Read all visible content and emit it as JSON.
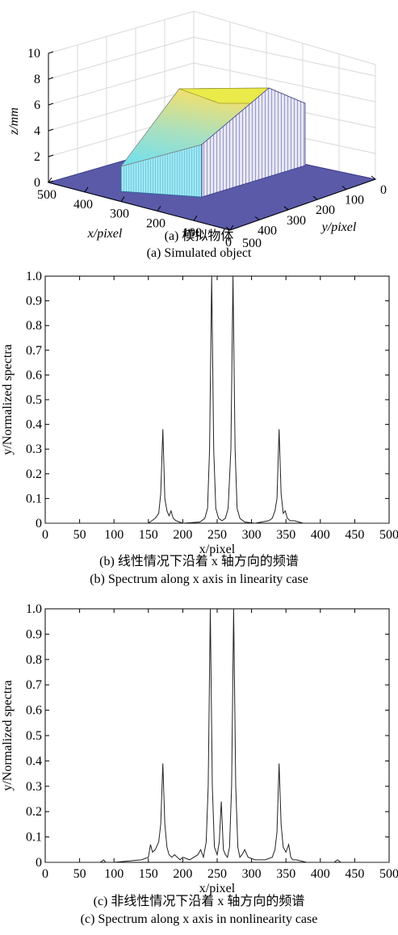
{
  "panels": {
    "a": {
      "caption_cn": "(a) 模拟物体",
      "caption_en": "(a) Simulated object"
    },
    "b": {
      "caption_cn": "(b) 线性情况下沿着 x 轴方向的频谱",
      "caption_en": "(b) Spectrum along x axis in linearity case"
    },
    "c": {
      "caption_cn": "(c) 非线性情况下沿着 x 轴方向的频谱",
      "caption_en": "(c) Spectrum along x axis in nonlinearity case"
    }
  },
  "chart_data": [
    {
      "type": "surface3d",
      "zlabel": "z/mm",
      "xlabel": "x/pixel",
      "ylabel": "y/pixel",
      "z_ticks": [
        "0",
        "2",
        "4",
        "6",
        "8",
        "10"
      ],
      "x_ticks": [
        "500",
        "400",
        "300",
        "200",
        "100",
        "0"
      ],
      "y_ticks": [
        "500",
        "400",
        "300",
        "200",
        "100",
        "0"
      ],
      "zlim": [
        0,
        10
      ],
      "object": {
        "base_height": 0,
        "top_height": 6,
        "shape": "ramp then plateau",
        "colors": {
          "floor": "#5a5aa8",
          "ramp_low": "#66d9e8",
          "ramp_high": "#e8d870",
          "top": "#eaea4a",
          "side": "#c8c8e8"
        }
      }
    },
    {
      "type": "line",
      "xlabel": "x/pixel",
      "ylabel": "y/Normalized spectra",
      "xlim": [
        0,
        500
      ],
      "ylim": [
        0,
        1.0
      ],
      "x_ticks": [
        0,
        50,
        100,
        150,
        200,
        250,
        300,
        350,
        400,
        450,
        500
      ],
      "y_ticks": [
        "0",
        "0.1",
        "0.2",
        "0.3",
        "0.4",
        "0.5",
        "0.6",
        "0.7",
        "0.8",
        "0.9",
        "1.0"
      ],
      "series_color": "#222222",
      "x": [
        0,
        150,
        155,
        160,
        165,
        168,
        171,
        174,
        177,
        180,
        183,
        186,
        190,
        200,
        225,
        232,
        236,
        239,
        242,
        245,
        248,
        252,
        257,
        262,
        266,
        270,
        273,
        276,
        279,
        283,
        290,
        305,
        325,
        330,
        334,
        337,
        340,
        343,
        346,
        349,
        352,
        356,
        362,
        375,
        500
      ],
      "y": [
        0,
        0,
        0.01,
        0.02,
        0.04,
        0.12,
        0.38,
        0.1,
        0.05,
        0.03,
        0.05,
        0.02,
        0.01,
        0,
        0.005,
        0.02,
        0.06,
        0.3,
        1.0,
        0.3,
        0.06,
        0.02,
        0.01,
        0.02,
        0.06,
        0.3,
        1.0,
        0.3,
        0.06,
        0.02,
        0.005,
        0,
        0.01,
        0.02,
        0.05,
        0.1,
        0.38,
        0.12,
        0.04,
        0.05,
        0.02,
        0.01,
        0.01,
        0,
        0
      ]
    },
    {
      "type": "line",
      "xlabel": "x/pixel",
      "ylabel": "y/Normalized spectra",
      "xlim": [
        0,
        500
      ],
      "ylim": [
        0,
        1.0
      ],
      "x_ticks": [
        0,
        50,
        100,
        150,
        200,
        250,
        300,
        350,
        400,
        450,
        500
      ],
      "y_ticks": [
        "0",
        "0.1",
        "0.2",
        "0.3",
        "0.4",
        "0.5",
        "0.6",
        "0.7",
        "0.8",
        "0.9",
        "1.0"
      ],
      "series_color": "#222222",
      "x": [
        0,
        80,
        85,
        88,
        100,
        140,
        150,
        153,
        156,
        160,
        165,
        168,
        171,
        174,
        177,
        180,
        184,
        188,
        192,
        196,
        200,
        210,
        222,
        226,
        230,
        234,
        237,
        240,
        243,
        246,
        250,
        253,
        256,
        259,
        262,
        265,
        268,
        271,
        274,
        277,
        280,
        283,
        286,
        290,
        295,
        305,
        320,
        330,
        334,
        337,
        340,
        343,
        346,
        350,
        354,
        357,
        360,
        365,
        380,
        420,
        425,
        430,
        500
      ],
      "y": [
        0,
        0,
        0.01,
        0,
        0,
        0.01,
        0.02,
        0.07,
        0.04,
        0.05,
        0.08,
        0.15,
        0.39,
        0.15,
        0.06,
        0.03,
        0.02,
        0.03,
        0.02,
        0.01,
        0.02,
        0.01,
        0.03,
        0.05,
        0.02,
        0.08,
        0.3,
        1.0,
        0.3,
        0.06,
        0.03,
        0.08,
        0.24,
        0.05,
        0.03,
        0.02,
        0.06,
        0.3,
        1.0,
        0.3,
        0.06,
        0.02,
        0.03,
        0.05,
        0.02,
        0.01,
        0.01,
        0.02,
        0.05,
        0.12,
        0.39,
        0.15,
        0.06,
        0.04,
        0.07,
        0.02,
        0.01,
        0.01,
        0,
        0,
        0.01,
        0,
        0
      ]
    }
  ]
}
